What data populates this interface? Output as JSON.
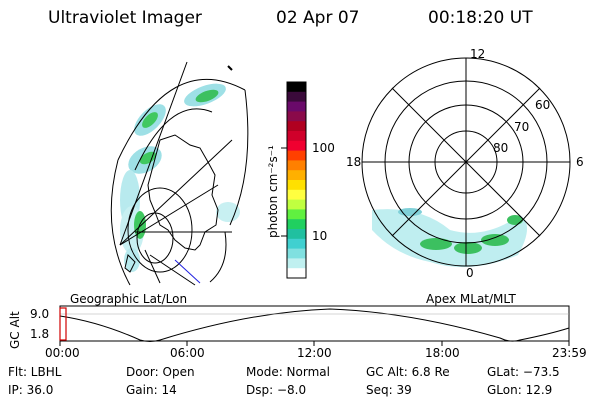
{
  "header": {
    "instrument": "Ultraviolet Imager",
    "date": "02 Apr 07",
    "time": "00:18:20 UT"
  },
  "colorbar": {
    "label": "photon cm⁻²s⁻¹",
    "ticks": [
      "100",
      "10"
    ],
    "colors": [
      "#000000",
      "#3a0a3a",
      "#6a0a6a",
      "#8a0a4a",
      "#b00020",
      "#d0002a",
      "#f00030",
      "#ff4000",
      "#ff8000",
      "#ffb000",
      "#ffe000",
      "#ffff40",
      "#c0ff40",
      "#60f040",
      "#20d060",
      "#20c0a0",
      "#40d0d0",
      "#80e0e0",
      "#c0f0f0",
      "#ffffff"
    ]
  },
  "left_map": {
    "label": "Geographic Lat/Lon"
  },
  "right_map": {
    "label": "Apex MLat/MLT",
    "mlt_labels": [
      "12",
      "18",
      "6",
      "0"
    ],
    "lat_labels": [
      "60",
      "70",
      "80"
    ]
  },
  "orbit_plot": {
    "ylabel": "GC Alt",
    "yticks": [
      "9.0",
      "1.8"
    ],
    "xticks": [
      "00:00",
      "06:00",
      "12:00",
      "18:00",
      "23:59"
    ]
  },
  "info": {
    "row1": {
      "flt": "Flt: LBHL",
      "door": "Door: Open",
      "mode": "Mode: Normal",
      "gcalt": "GC Alt: 6.8 Re",
      "glat": "GLat: −73.5"
    },
    "row2": {
      "ip": "IP: 36.0",
      "gain": "Gain: 14",
      "dsp": "Dsp:   −8.0",
      "seq": "Seq: 39",
      "glon": "GLon:  12.9"
    }
  },
  "colors": {
    "aurora_green": "#30c050",
    "aurora_cyan": "#80d8e0",
    "line": "#000000",
    "marker": "#d00000"
  }
}
